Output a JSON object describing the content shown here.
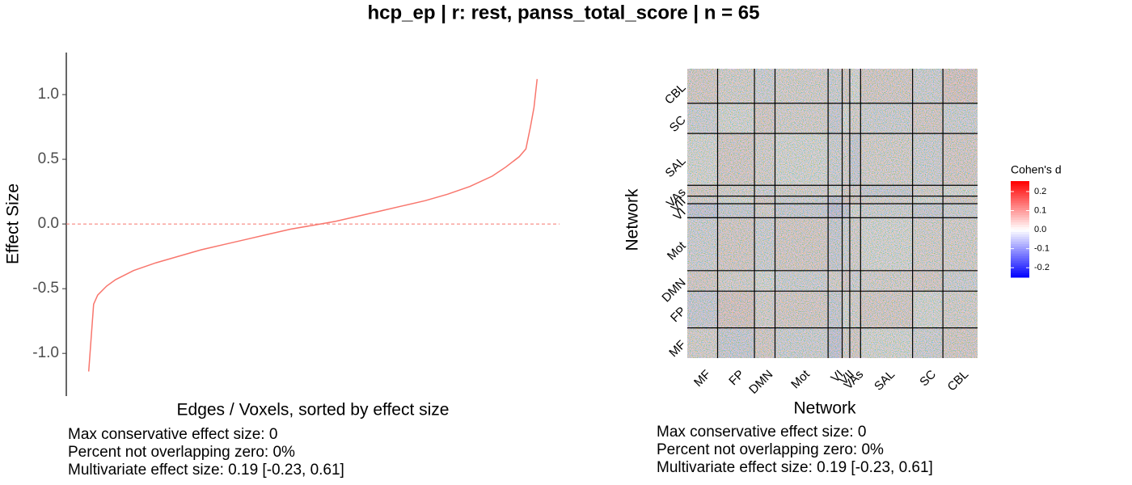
{
  "title": "hcp_ep | r: rest, panss_total_score | n = 65",
  "chart_data": [
    {
      "type": "line",
      "xlabel": "Edges / Voxels, sorted by effect size",
      "ylabel": "Effect Size",
      "color": "#f8766d",
      "x": [
        0,
        0.011,
        0.02,
        0.04,
        0.06,
        0.1,
        0.15,
        0.2,
        0.25,
        0.3,
        0.35,
        0.4,
        0.45,
        0.5,
        0.55,
        0.6,
        0.65,
        0.7,
        0.75,
        0.8,
        0.85,
        0.9,
        0.93,
        0.96,
        0.975,
        0.985,
        0.993,
        1
      ],
      "values": [
        -1.14,
        -0.62,
        -0.55,
        -0.48,
        -0.43,
        -0.36,
        -0.3,
        -0.25,
        -0.2,
        -0.16,
        -0.12,
        -0.08,
        -0.04,
        -0.01,
        0.02,
        0.06,
        0.1,
        0.14,
        0.18,
        0.23,
        0.29,
        0.37,
        0.44,
        0.52,
        0.58,
        0.75,
        0.9,
        1.12
      ],
      "xlim": [
        -0.05,
        1.05
      ],
      "ylim": [
        -1.33,
        1.325
      ],
      "yticks": [
        {
          "value": 1,
          "label": "1.0"
        },
        0.5,
        {
          "value": 0,
          "label": "0.0"
        },
        -0.5,
        {
          "value": -1,
          "label": "-1.0"
        }
      ],
      "reference_line": 0,
      "annotations": [
        "Max conservative effect size: 0",
        "Percent not overlapping zero: 0%",
        "Multivariate effect size: 0.19 [-0.23, 0.61]"
      ]
    },
    {
      "type": "heatmap",
      "xlabel": "Network",
      "ylabel": "Network",
      "categories": [
        "MF",
        "FP",
        "DMN",
        "Mot",
        "VI",
        "VII",
        "VAs",
        "SAL",
        "SC",
        "CBL"
      ],
      "sizes": [
        28,
        34,
        19,
        49,
        13,
        7,
        10,
        48,
        28,
        32
      ],
      "values": [
        [
          0.01,
          -0.02,
          0.02,
          -0.01,
          -0.03,
          0.01,
          0.02,
          0.0,
          -0.01,
          0.02
        ],
        [
          -0.02,
          0.03,
          0.01,
          0.02,
          -0.02,
          0.0,
          0.01,
          0.02,
          0.0,
          0.01
        ],
        [
          0.02,
          0.01,
          0.0,
          -0.01,
          0.01,
          0.02,
          -0.01,
          0.01,
          0.02,
          -0.01
        ],
        [
          -0.01,
          0.02,
          -0.01,
          0.02,
          -0.02,
          -0.01,
          0.01,
          0.0,
          0.01,
          0.01
        ],
        [
          -0.03,
          -0.02,
          0.01,
          -0.02,
          -0.04,
          -0.03,
          0.0,
          -0.01,
          -0.02,
          -0.01
        ],
        [
          0.01,
          0.0,
          0.02,
          -0.01,
          -0.03,
          0.03,
          0.02,
          0.01,
          0.0,
          0.02
        ],
        [
          0.02,
          0.01,
          -0.01,
          0.01,
          0.0,
          0.02,
          0.01,
          -0.02,
          0.01,
          0.0
        ],
        [
          0.0,
          0.02,
          0.01,
          0.0,
          -0.01,
          0.01,
          -0.02,
          0.01,
          -0.01,
          0.02
        ],
        [
          -0.01,
          0.0,
          0.02,
          0.01,
          -0.02,
          0.0,
          0.01,
          -0.01,
          0.02,
          -0.01
        ],
        [
          0.02,
          0.01,
          -0.01,
          0.01,
          -0.01,
          0.02,
          0.0,
          0.02,
          -0.01,
          0.03
        ]
      ],
      "legend_title": "Cohen's d",
      "colorscale": [
        "#0000ff",
        "#ffffff",
        "#ff0000"
      ],
      "clim": [
        -0.25,
        0.255
      ],
      "cticks": [
        0.2,
        0.1,
        {
          "value": 0,
          "label": "0.0"
        },
        -0.1,
        -0.2
      ],
      "annotations": [
        "Max conservative effect size: 0",
        "Percent not overlapping zero: 0%",
        "Multivariate effect size: 0.19 [-0.23, 0.61]"
      ]
    }
  ]
}
